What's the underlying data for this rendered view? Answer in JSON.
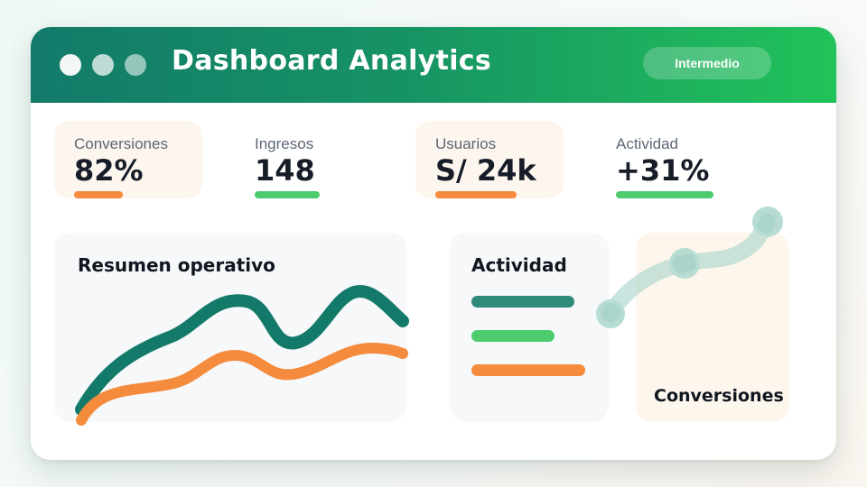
{
  "header": {
    "title": "Dashboard Analytics",
    "badge": "Intermedio"
  },
  "kpis": [
    {
      "label": "Conversiones",
      "value": "82%",
      "color": "#f58b3c"
    },
    {
      "label": "Ingresos",
      "value": "148",
      "color": "#4ccc6e"
    },
    {
      "label": "Usuarios",
      "value": "S/ 24k",
      "color": "#f58b3c"
    },
    {
      "label": "Actividad",
      "value": "+31%",
      "color": "#4ccc6e"
    }
  ],
  "resumen": {
    "title": "Resumen operativo",
    "series_colors": [
      "#137a6a",
      "#f58b3c"
    ]
  },
  "actividad": {
    "title": "Actividad",
    "bars": [
      {
        "color": "#2f8a7c"
      },
      {
        "color": "#4ccc6e"
      },
      {
        "color": "#f58b3c"
      }
    ]
  },
  "conversiones": {
    "title": "Conversiones",
    "accent": "#9fcfc4"
  },
  "colors": {
    "header_start": "#137a6a",
    "header_end": "#22c25a",
    "text_dark": "#161d29",
    "label_gray": "#5c6672"
  }
}
